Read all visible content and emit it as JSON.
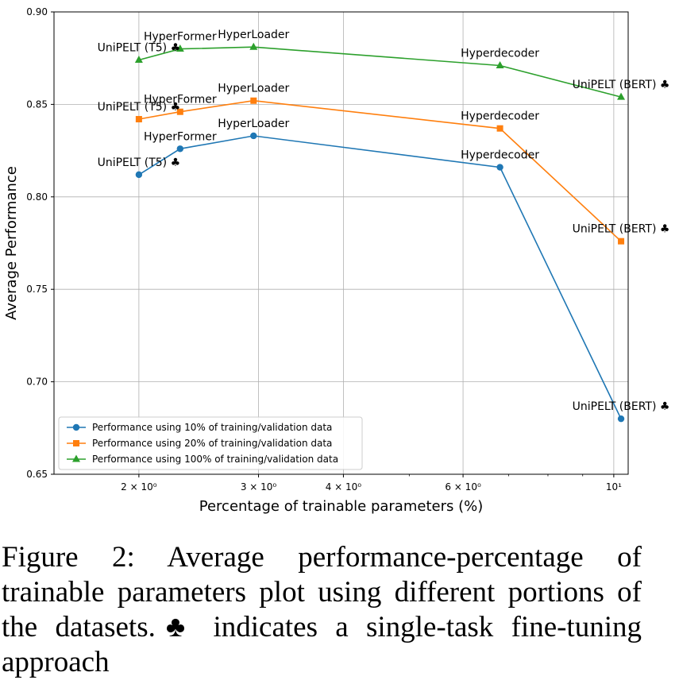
{
  "chart_data": {
    "type": "line",
    "xscale": "log",
    "xlabel": "Percentage of trainable parameters (%)",
    "ylabel": "Average Performance",
    "xlim": [
      1.5,
      10.5
    ],
    "ylim": [
      0.65,
      0.9
    ],
    "xticks": [
      {
        "value": 2,
        "label": "2 × 10⁰"
      },
      {
        "value": 3,
        "label": "3 × 10⁰"
      },
      {
        "value": 4,
        "label": "4 × 10⁰"
      },
      {
        "value": 6,
        "label": "6 × 10⁰"
      },
      {
        "value": 10,
        "label": "10¹"
      }
    ],
    "yticks": [
      0.65,
      0.7,
      0.75,
      0.8,
      0.85,
      0.9
    ],
    "ytick_labels": [
      "0.65",
      "0.70",
      "0.75",
      "0.80",
      "0.85",
      "0.90"
    ],
    "grid": true,
    "legend_position": "lower-left",
    "series": [
      {
        "name": "Performance using 10% of training/validation data",
        "color": "#1f77b4",
        "marker": "circle",
        "x": [
          2.0,
          2.3,
          2.95,
          6.8,
          10.25
        ],
        "y": [
          0.812,
          0.826,
          0.833,
          0.816,
          0.68
        ],
        "labels": [
          "UniPELT (T5) ♣",
          "HyperFormer",
          "HyperLoader",
          "Hyperdecoder",
          "UniPELT (BERT) ♣"
        ]
      },
      {
        "name": "Performance using 20% of training/validation data",
        "color": "#ff7f0e",
        "marker": "square",
        "x": [
          2.0,
          2.3,
          2.95,
          6.8,
          10.25
        ],
        "y": [
          0.842,
          0.846,
          0.852,
          0.837,
          0.776
        ],
        "labels": [
          "UniPELT (T5) ♣",
          "HyperFormer",
          "HyperLoader",
          "Hyperdecoder",
          "UniPELT (BERT) ♣"
        ]
      },
      {
        "name": "Performance using 100% of training/validation data",
        "color": "#2ca02c",
        "marker": "triangle",
        "x": [
          2.0,
          2.3,
          2.95,
          6.8,
          10.25
        ],
        "y": [
          0.874,
          0.88,
          0.881,
          0.871,
          0.854
        ],
        "labels": [
          "UniPELT (T5) ♣",
          "HyperFormer",
          "HyperLoader",
          "Hyperdecoder",
          "UniPELT (BERT) ♣"
        ]
      }
    ]
  },
  "caption": {
    "text": "Figure 2:  Average performance-percentage of trainable parameters plot using different portions of the datasets.♣ indicates a single-task fine-tuning approach"
  }
}
